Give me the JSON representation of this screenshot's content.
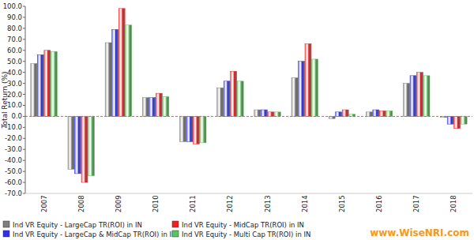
{
  "chart_data": {
    "type": "bar",
    "y_label": "Total Return (%)",
    "categories": [
      "2007",
      "2008",
      "2009",
      "2010",
      "2011",
      "2012",
      "2013",
      "2014",
      "2015",
      "2016",
      "2017",
      "2018"
    ],
    "series": [
      {
        "name": "Ind VR Equity - LargeCap TR(ROI) in IN",
        "color": "#7f7f7f",
        "values": [
          48,
          -48,
          67,
          17,
          -23,
          26,
          6,
          35,
          -2,
          4,
          30,
          -1
        ]
      },
      {
        "name": "Ind VR Equity - LargeCap & MidCap TR(ROI) in IN",
        "color": "#2f2fef",
        "values": [
          56,
          -52,
          79,
          17,
          -23,
          32,
          6,
          50,
          4,
          6,
          37,
          -7
        ]
      },
      {
        "name": "Ind VR Equity - MidCap TR(ROI) in IN",
        "color": "#f02020",
        "values": [
          60,
          -60,
          98,
          21,
          -25,
          41,
          4,
          66,
          6,
          5,
          40,
          -11
        ]
      },
      {
        "name": "Ind VR Equity - Multi Cap TR(ROI) in IN",
        "color": "#5cc45c",
        "values": [
          59,
          -54,
          83,
          18,
          -24,
          32,
          4,
          52,
          2,
          5,
          37,
          -7
        ]
      }
    ],
    "ylim": [
      -70,
      100
    ],
    "yticks": [
      {
        "value": 100,
        "label": "100.0"
      },
      {
        "value": 90,
        "label": "90.0"
      },
      {
        "value": 80,
        "label": "80.0"
      },
      {
        "value": 70,
        "label": "70.0"
      },
      {
        "value": 60,
        "label": "60.0"
      },
      {
        "value": 50,
        "label": "50.0"
      },
      {
        "value": 40,
        "label": "40.0"
      },
      {
        "value": 30,
        "label": "30.0"
      },
      {
        "value": 20,
        "label": "20.0"
      },
      {
        "value": 10,
        "label": "10.0"
      },
      {
        "value": 0,
        "label": "0.0"
      },
      {
        "value": -10,
        "label": "-10.0"
      },
      {
        "value": -20,
        "label": "-20.0"
      },
      {
        "value": -30,
        "label": "-30.0"
      },
      {
        "value": -40,
        "label": "-40.0"
      },
      {
        "value": -50,
        "label": "-50.0"
      },
      {
        "value": -60,
        "label": "-60.0"
      },
      {
        "value": -70,
        "label": "-70.0"
      }
    ],
    "grid": false,
    "legend": "bottom",
    "annotations": [
      "www.WiseNRI.com"
    ]
  }
}
